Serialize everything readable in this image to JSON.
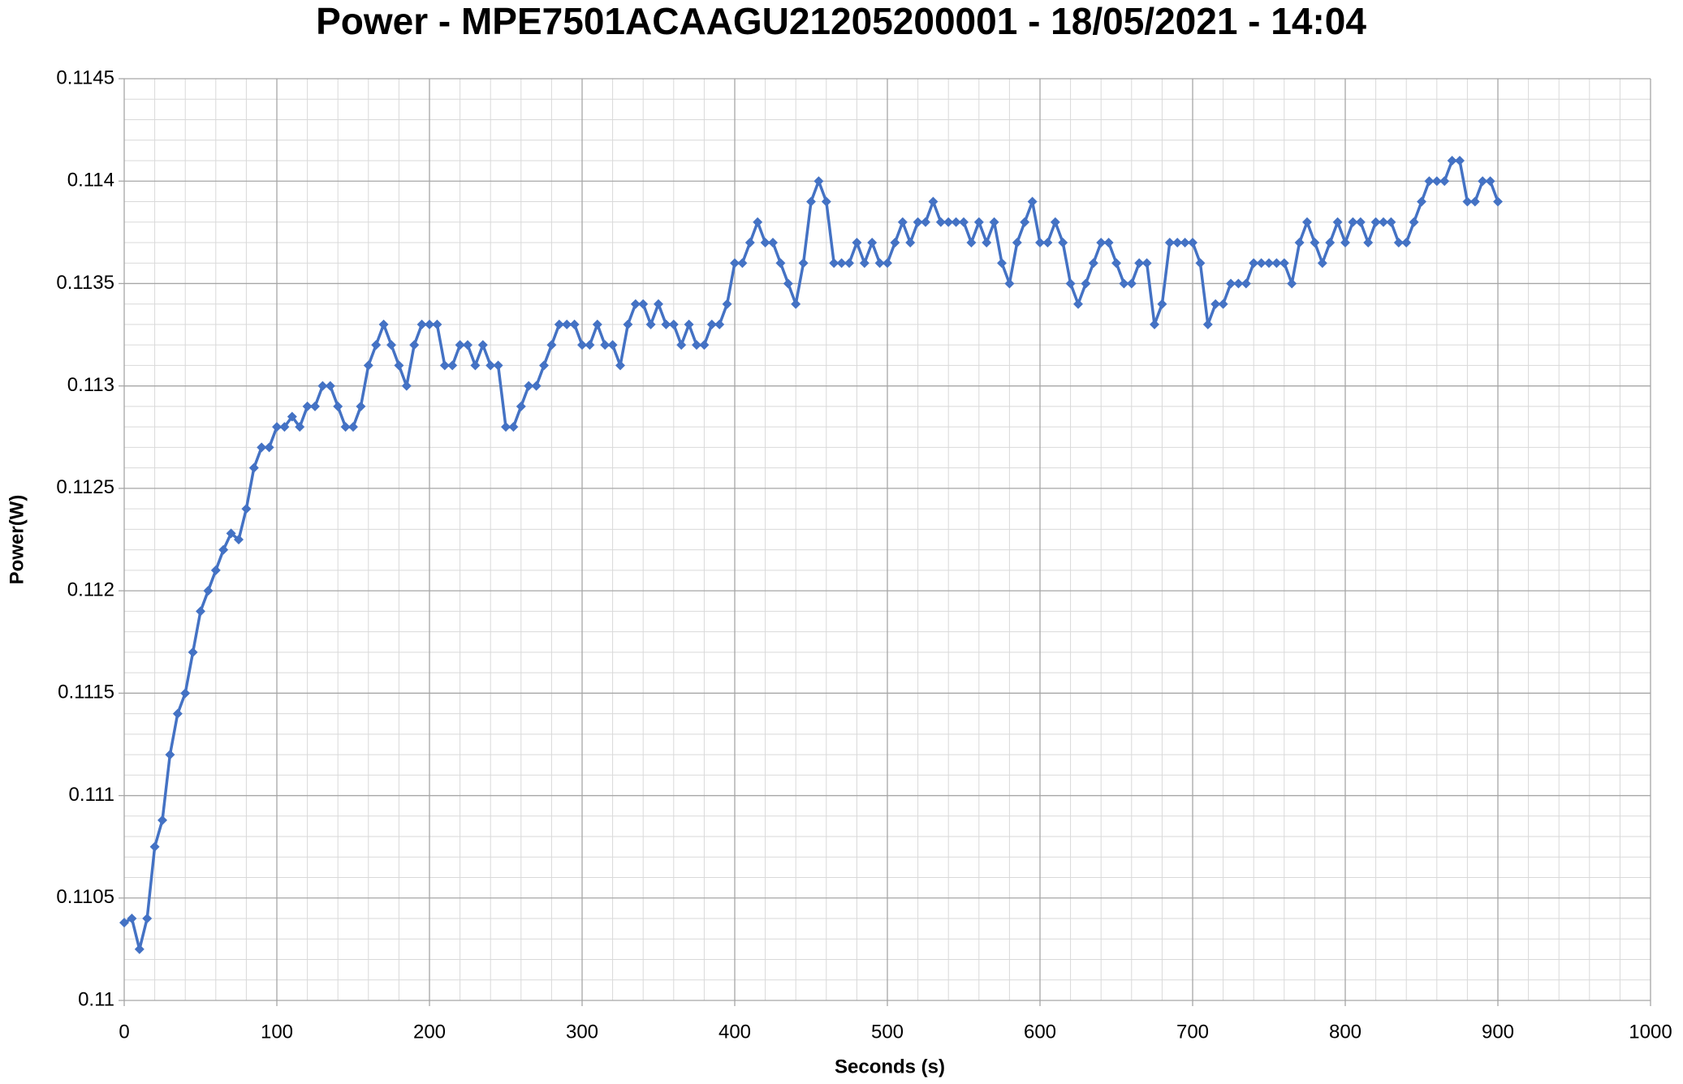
{
  "chart_data": {
    "type": "line",
    "title": "Power - MPE7501ACAAGU21205200001 - 18/05/2021 - 14:04",
    "x_label": "Seconds (s)",
    "y_label": "Power(W)",
    "xlim": [
      0,
      1000
    ],
    "xticks": [
      0,
      100,
      200,
      300,
      400,
      500,
      600,
      700,
      800,
      900,
      1000
    ],
    "ylim": [
      0.11,
      0.1145
    ],
    "yticks": [
      0.11,
      0.1105,
      0.111,
      0.1115,
      0.112,
      0.1125,
      0.113,
      0.1135,
      0.114,
      0.1145
    ],
    "grid": true,
    "minor_grid": true,
    "markers": true,
    "x": [
      0,
      5,
      10,
      15,
      20,
      25,
      30,
      35,
      40,
      45,
      50,
      55,
      60,
      65,
      70,
      75,
      80,
      85,
      90,
      95,
      100,
      105,
      110,
      115,
      120,
      125,
      130,
      135,
      140,
      145,
      150,
      155,
      160,
      165,
      170,
      175,
      180,
      185,
      190,
      195,
      200,
      205,
      210,
      215,
      220,
      225,
      230,
      235,
      240,
      245,
      250,
      255,
      260,
      265,
      270,
      275,
      280,
      285,
      290,
      295,
      300,
      305,
      310,
      315,
      320,
      325,
      330,
      335,
      340,
      345,
      350,
      355,
      360,
      365,
      370,
      375,
      380,
      385,
      390,
      395,
      400,
      405,
      410,
      415,
      420,
      425,
      430,
      435,
      440,
      445,
      450,
      455,
      460,
      465,
      470,
      475,
      480,
      485,
      490,
      495,
      500,
      505,
      510,
      515,
      520,
      525,
      530,
      535,
      540,
      545,
      550,
      555,
      560,
      565,
      570,
      575,
      580,
      585,
      590,
      595,
      600,
      605,
      610,
      615,
      620,
      625,
      630,
      635,
      640,
      645,
      650,
      655,
      660,
      665,
      670,
      675,
      680,
      685,
      690,
      695,
      700,
      705,
      710,
      715,
      720,
      725,
      730,
      735,
      740,
      745,
      750,
      755,
      760,
      765,
      770,
      775,
      780,
      785,
      790,
      795,
      800,
      805,
      810,
      815,
      820,
      825,
      830,
      835,
      840,
      845,
      850,
      855,
      860,
      865,
      870,
      875,
      880,
      885,
      890,
      895,
      900
    ],
    "series": [
      {
        "name": "Power(W)",
        "color": "#4472c4",
        "values": [
          0.11038,
          0.1104,
          0.11025,
          0.1104,
          0.11075,
          0.11088,
          0.1112,
          0.1114,
          0.1115,
          0.1117,
          0.1119,
          0.112,
          0.1121,
          0.1122,
          0.11228,
          0.11225,
          0.1124,
          0.1126,
          0.1127,
          0.1127,
          0.1128,
          0.1128,
          0.11285,
          0.1128,
          0.1129,
          0.1129,
          0.113,
          0.113,
          0.1129,
          0.1128,
          0.1128,
          0.1129,
          0.1131,
          0.1132,
          0.1133,
          0.1132,
          0.1131,
          0.113,
          0.1132,
          0.1133,
          0.1133,
          0.1133,
          0.1131,
          0.1131,
          0.1132,
          0.1132,
          0.1131,
          0.1132,
          0.1131,
          0.1131,
          0.1128,
          0.1128,
          0.1129,
          0.113,
          0.113,
          0.1131,
          0.1132,
          0.1133,
          0.1133,
          0.1133,
          0.1132,
          0.1132,
          0.1133,
          0.1132,
          0.1132,
          0.1131,
          0.1133,
          0.1134,
          0.1134,
          0.1133,
          0.1134,
          0.1133,
          0.1133,
          0.1132,
          0.1133,
          0.1132,
          0.1132,
          0.1133,
          0.1133,
          0.1134,
          0.1136,
          0.1136,
          0.1137,
          0.1138,
          0.1137,
          0.1137,
          0.1136,
          0.1135,
          0.1134,
          0.1136,
          0.1139,
          0.114,
          0.1139,
          0.1136,
          0.1136,
          0.1136,
          0.1137,
          0.1136,
          0.1137,
          0.1136,
          0.1136,
          0.1137,
          0.1138,
          0.1137,
          0.1138,
          0.1138,
          0.1139,
          0.1138,
          0.1138,
          0.1138,
          0.1138,
          0.1137,
          0.1138,
          0.1137,
          0.1138,
          0.1136,
          0.1135,
          0.1137,
          0.1138,
          0.1139,
          0.1137,
          0.1137,
          0.1138,
          0.1137,
          0.1135,
          0.1134,
          0.1135,
          0.1136,
          0.1137,
          0.1137,
          0.1136,
          0.1135,
          0.1135,
          0.1136,
          0.1136,
          0.1133,
          0.1134,
          0.1137,
          0.1137,
          0.1137,
          0.1137,
          0.1136,
          0.1133,
          0.1134,
          0.1134,
          0.1135,
          0.1135,
          0.1135,
          0.1136,
          0.1136,
          0.1136,
          0.1136,
          0.1136,
          0.1135,
          0.1137,
          0.1138,
          0.1137,
          0.1136,
          0.1137,
          0.1138,
          0.1137,
          0.1138,
          0.1138,
          0.1137,
          0.1138,
          0.1138,
          0.1138,
          0.1137,
          0.1137,
          0.1138,
          0.1139,
          0.114,
          0.114,
          0.114,
          0.1141,
          0.1141,
          0.1139,
          0.1139,
          0.114,
          0.114,
          0.1139
        ]
      }
    ]
  }
}
